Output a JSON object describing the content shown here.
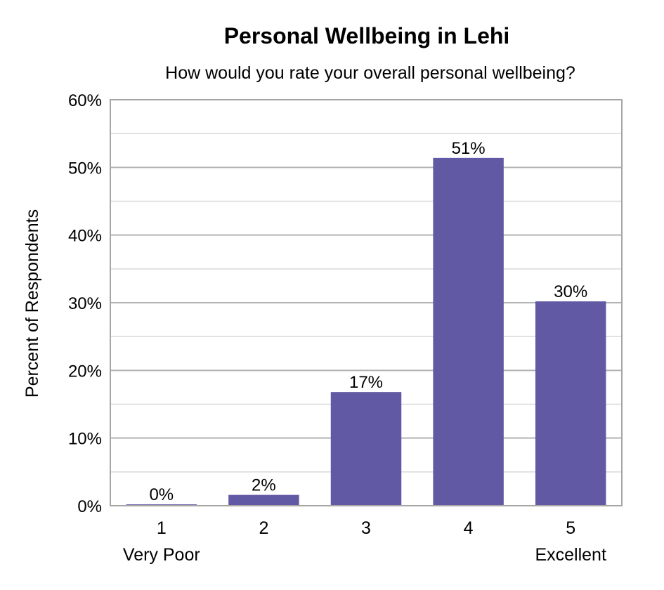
{
  "chart_data": {
    "type": "bar",
    "title": "Personal Wellbeing in Lehi",
    "subtitle": "How would you rate your overall personal wellbeing?",
    "ylabel": "Percent of Respondents",
    "xlabel": "",
    "categories": [
      "1",
      "2",
      "3",
      "4",
      "5"
    ],
    "category_sublabels": [
      "Very Poor",
      "",
      "",
      "",
      "Excellent"
    ],
    "values": [
      0.2,
      1.6,
      16.8,
      51.4,
      30.2
    ],
    "data_labels": [
      "0%",
      "2%",
      "17%",
      "51%",
      "30%"
    ],
    "ylim": [
      0,
      60
    ],
    "y_ticks": [
      0,
      10,
      20,
      30,
      40,
      50,
      60
    ],
    "y_tick_labels": [
      "0%",
      "10%",
      "20%",
      "30%",
      "40%",
      "50%",
      "60%"
    ],
    "grid": true,
    "legend": "none",
    "bar_color": "#6159A4",
    "major_grid_color": "#B3B3B3",
    "minor_grid_color": "#D9D9D9"
  }
}
